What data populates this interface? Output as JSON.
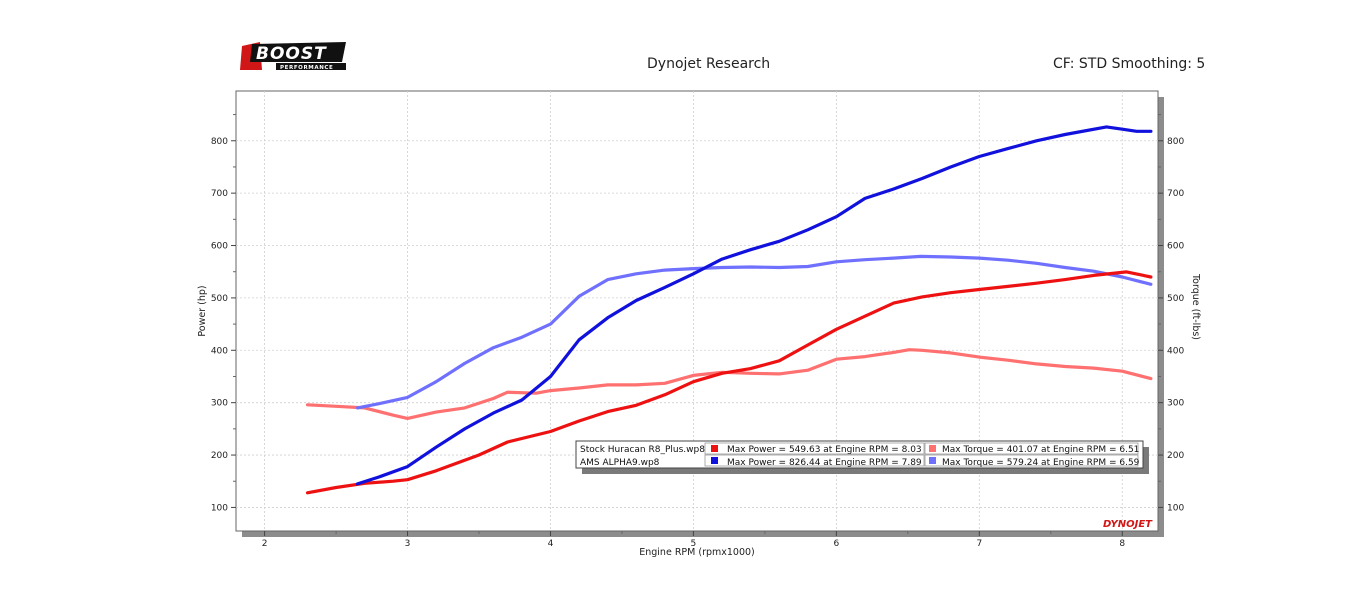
{
  "header": {
    "logo_text": "BOOST",
    "logo_sub": "PERFORMANCE",
    "title": "Dynojet Research",
    "cf_text": "CF: STD Smoothing: 5"
  },
  "watermark": "DYNOJET",
  "colors": {
    "stock_power": "#ee1111",
    "stock_torque": "#ff7070",
    "ams_power": "#1111dd",
    "ams_torque": "#7070ff"
  },
  "chart_data": {
    "type": "line",
    "xlabel": "Engine RPM (rpmx1000)",
    "ylabel_left": "Power (hp)",
    "ylabel_right": "Torque (ft-lbs)",
    "xlim": [
      1.8,
      8.25
    ],
    "ylim": [
      55,
      895
    ],
    "x_ticks": [
      2,
      3,
      4,
      5,
      6,
      7,
      8
    ],
    "y_ticks": [
      100,
      200,
      300,
      400,
      500,
      600,
      700,
      800
    ],
    "grid": true,
    "series": [
      {
        "name": "Stock Huracan R8_Plus.wp8",
        "measure": "Power",
        "color": "#ee1111",
        "x": [
          2.3,
          2.5,
          2.7,
          2.9,
          3.0,
          3.2,
          3.5,
          3.7,
          4.0,
          4.2,
          4.4,
          4.6,
          4.8,
          5.0,
          5.2,
          5.4,
          5.6,
          5.8,
          6.0,
          6.2,
          6.4,
          6.6,
          6.8,
          7.0,
          7.2,
          7.4,
          7.6,
          7.8,
          8.03,
          8.2
        ],
        "y": [
          128,
          138,
          146,
          150,
          153,
          170,
          200,
          225,
          245,
          265,
          283,
          295,
          315,
          340,
          356,
          365,
          380,
          410,
          440,
          465,
          490,
          502,
          510,
          516,
          522,
          528,
          535,
          543,
          549.63,
          540
        ]
      },
      {
        "name": "Stock Huracan R8_Plus.wp8",
        "measure": "Torque",
        "color": "#ff7070",
        "x": [
          2.3,
          2.5,
          2.7,
          2.9,
          3.0,
          3.2,
          3.4,
          3.6,
          3.7,
          3.9,
          4.0,
          4.2,
          4.4,
          4.6,
          4.8,
          5.0,
          5.2,
          5.4,
          5.6,
          5.8,
          6.0,
          6.2,
          6.4,
          6.51,
          6.6,
          6.8,
          7.0,
          7.2,
          7.4,
          7.6,
          7.8,
          8.0,
          8.2
        ],
        "y": [
          296,
          293,
          290,
          276,
          270,
          282,
          290,
          308,
          320,
          318,
          323,
          328,
          334,
          334,
          337,
          352,
          358,
          356,
          355,
          362,
          383,
          388,
          396,
          401.07,
          400,
          395,
          387,
          381,
          374,
          369,
          366,
          360,
          346
        ]
      },
      {
        "name": "AMS ALPHA9.wp8",
        "measure": "Power",
        "color": "#1111dd",
        "x": [
          2.65,
          2.8,
          3.0,
          3.2,
          3.4,
          3.6,
          3.8,
          4.0,
          4.2,
          4.4,
          4.6,
          4.8,
          5.0,
          5.2,
          5.4,
          5.6,
          5.8,
          6.0,
          6.2,
          6.4,
          6.6,
          6.8,
          7.0,
          7.2,
          7.4,
          7.6,
          7.89,
          8.0,
          8.1,
          8.2
        ],
        "y": [
          145,
          158,
          178,
          215,
          250,
          280,
          305,
          350,
          420,
          462,
          495,
          520,
          546,
          574,
          592,
          608,
          630,
          655,
          690,
          708,
          728,
          750,
          770,
          785,
          800,
          812,
          826.44,
          822,
          818,
          818
        ]
      },
      {
        "name": "AMS ALPHA9.wp8",
        "measure": "Torque",
        "color": "#7070ff",
        "x": [
          2.65,
          2.8,
          3.0,
          3.2,
          3.4,
          3.6,
          3.8,
          4.0,
          4.2,
          4.4,
          4.6,
          4.8,
          5.0,
          5.2,
          5.4,
          5.6,
          5.8,
          6.0,
          6.2,
          6.4,
          6.59,
          6.8,
          7.0,
          7.2,
          7.4,
          7.6,
          7.8,
          8.0,
          8.2
        ],
        "y": [
          290,
          298,
          310,
          340,
          375,
          405,
          425,
          450,
          503,
          535,
          546,
          553,
          556,
          558,
          559,
          558,
          560,
          569,
          573,
          576,
          579.24,
          578,
          576,
          572,
          566,
          558,
          551,
          540,
          526
        ]
      }
    ],
    "legend": {
      "placement": "bottom-right",
      "rows": [
        {
          "file": "Stock Huracan R8_Plus.wp8",
          "power_text": "Max Power = 549.63 at Engine RPM = 8.03",
          "torque_text": "Max Torque = 401.07 at Engine RPM = 6.51"
        },
        {
          "file": "AMS ALPHA9.wp8",
          "power_text": "Max Power = 826.44 at Engine RPM = 7.89",
          "torque_text": "Max Torque = 579.24 at Engine RPM = 6.59"
        }
      ]
    }
  }
}
